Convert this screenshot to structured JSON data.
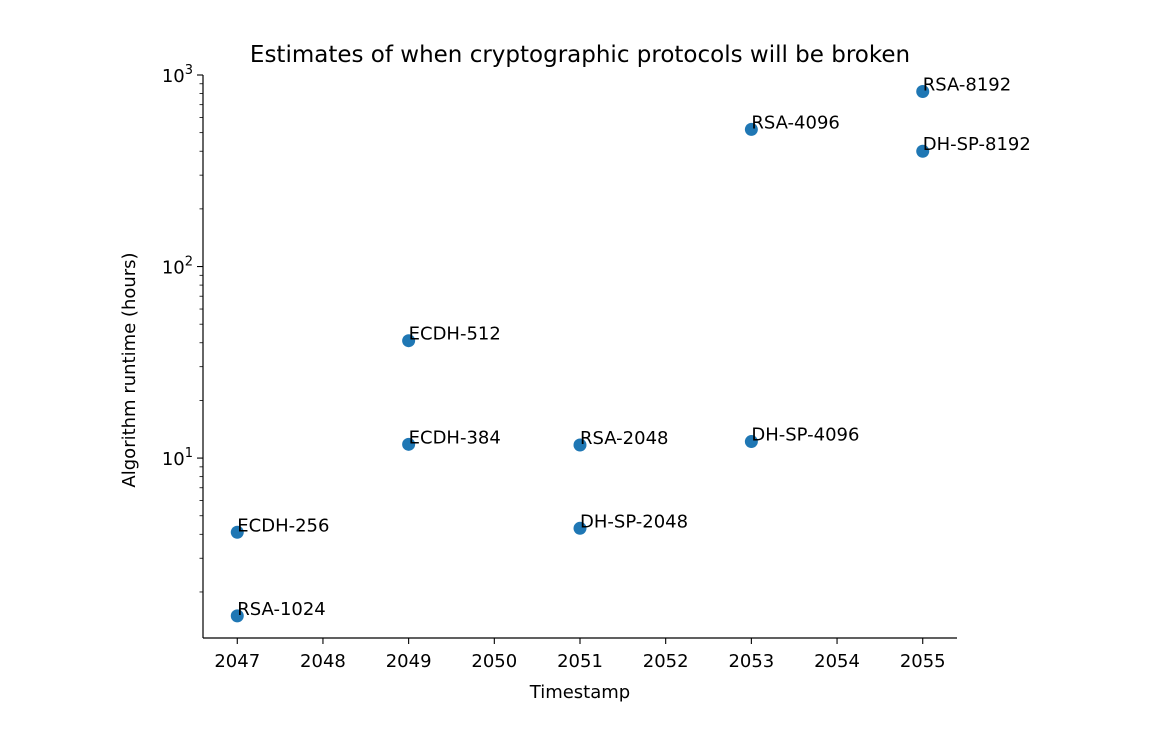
{
  "chart_data": {
    "type": "scatter",
    "title": "Estimates of when cryptographic protocols will be broken",
    "xlabel": "Timestamp",
    "ylabel": "Algorithm runtime (hours)",
    "yscale": "log",
    "xlim": [
      2046.6,
      2055.4
    ],
    "ylim": [
      1.15,
      1000
    ],
    "x_ticks": [
      2047,
      2048,
      2049,
      2050,
      2051,
      2052,
      2053,
      2054,
      2055
    ],
    "x_tick_labels": [
      "2047",
      "2048",
      "2049",
      "2050",
      "2051",
      "2052",
      "2053",
      "2054",
      "2055"
    ],
    "y_major_ticks": [
      {
        "base": "10",
        "exp": "1",
        "value": 10
      },
      {
        "base": "10",
        "exp": "2",
        "value": 100
      },
      {
        "base": "10",
        "exp": "3",
        "value": 1000
      }
    ],
    "grid": false,
    "marker_color": "#1f77b4",
    "points": [
      {
        "label": "RSA-1024",
        "x": 2047,
        "y": 1.5
      },
      {
        "label": "ECDH-256",
        "x": 2047,
        "y": 4.1
      },
      {
        "label": "ECDH-384",
        "x": 2049,
        "y": 11.8
      },
      {
        "label": "ECDH-512",
        "x": 2049,
        "y": 41
      },
      {
        "label": "RSA-2048",
        "x": 2051,
        "y": 11.7
      },
      {
        "label": "DH-SP-2048",
        "x": 2051,
        "y": 4.3
      },
      {
        "label": "RSA-4096",
        "x": 2053,
        "y": 520
      },
      {
        "label": "DH-SP-4096",
        "x": 2053,
        "y": 12.2
      },
      {
        "label": "RSA-8192",
        "x": 2055,
        "y": 820
      },
      {
        "label": "DH-SP-8192",
        "x": 2055,
        "y": 400
      }
    ]
  }
}
